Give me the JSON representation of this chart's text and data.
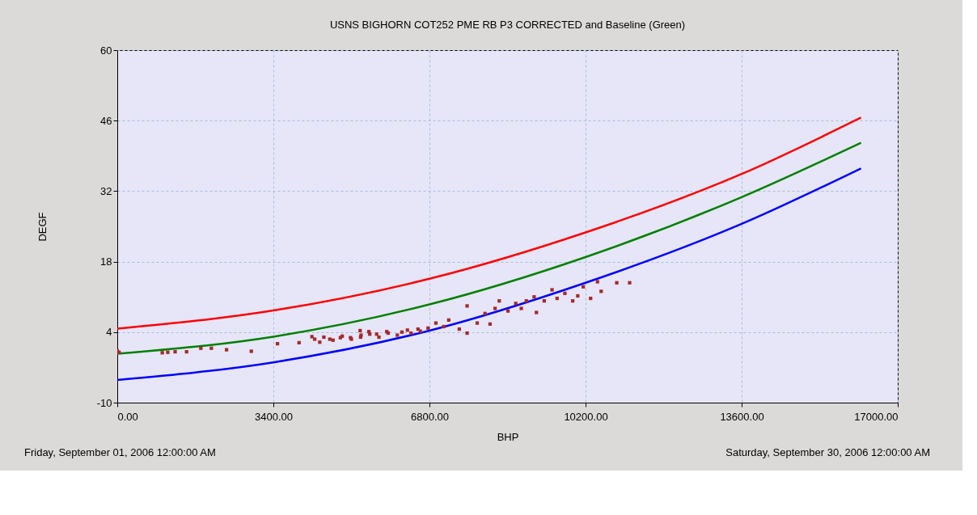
{
  "chart_data": {
    "type": "line",
    "title": "USNS BIGHORN COT252  PME  RB P3 CORRECTED and Baseline (Green)",
    "xlabel": "BHP",
    "ylabel": "DEGF",
    "annotations": [
      "Friday, September 01, 2006 12:00:00 AM",
      "Saturday, September 30, 2006 12:00:00 AM"
    ],
    "xlim": [
      0,
      17000
    ],
    "ylim": [
      -10,
      60
    ],
    "xticks": [
      {
        "value": 0,
        "label": "0.00"
      },
      {
        "value": 3400,
        "label": "3400.00"
      },
      {
        "value": 6800,
        "label": "6800.00"
      },
      {
        "value": 10200,
        "label": "10200.00"
      },
      {
        "value": 13600,
        "label": "13600.00"
      },
      {
        "value": 17000,
        "label": "17000.00"
      }
    ],
    "yticks": [
      -10,
      4,
      18,
      32,
      46,
      60
    ],
    "grid": true,
    "series": [
      {
        "color": "#ff0000",
        "marker": "none",
        "x": [
          0,
          3400,
          6800,
          10200,
          13600,
          16200
        ],
        "values": [
          4.7,
          8.3,
          14.6,
          23.8,
          35.4,
          46.6
        ]
      },
      {
        "color": "#008000",
        "marker": "none",
        "x": [
          0,
          3400,
          6800,
          10200,
          13600,
          16200
        ],
        "values": [
          -0.3,
          3.1,
          9.5,
          18.9,
          30.8,
          41.6
        ]
      },
      {
        "color": "#0000ff",
        "marker": "none",
        "x": [
          0,
          3400,
          6800,
          10200,
          13600,
          16200
        ],
        "values": [
          -5.5,
          -2.0,
          4.3,
          13.8,
          25.5,
          36.5
        ]
      },
      {
        "type": "scatter",
        "marker": "square",
        "color": "#a52a2a",
        "x": [
          0,
          40,
          980,
          1100,
          1260,
          1510,
          1820,
          2050,
          2380,
          2920,
          3490,
          3960,
          4240,
          4410,
          4630,
          4860,
          5080,
          5310,
          5480,
          5650,
          5870,
          6100,
          6320,
          6550,
          6770,
          4300,
          4500,
          4700,
          4900,
          5100,
          5300,
          5500,
          5700,
          5900,
          6200,
          6400,
          6600,
          5290,
          6940,
          7110,
          7220,
          7450,
          7620,
          7620,
          7840,
          8010,
          8120,
          8230,
          8320,
          8510,
          8680,
          8800,
          8910,
          9080,
          9130,
          9300,
          9470,
          9580,
          9750,
          9920,
          10030,
          10150,
          10310,
          10460,
          10540,
          10880,
          11160
        ],
        "values": [
          0.3,
          0.0,
          -0.1,
          0.0,
          0.1,
          0.1,
          0.8,
          0.8,
          0.5,
          0.2,
          1.7,
          1.9,
          3.1,
          2.0,
          2.6,
          2.9,
          2.9,
          3.4,
          4.1,
          3.6,
          4.1,
          3.4,
          4.4,
          4.6,
          4.8,
          2.6,
          3.0,
          2.4,
          3.2,
          2.6,
          3.0,
          3.6,
          3.0,
          3.8,
          4.0,
          3.8,
          4.2,
          4.3,
          5.8,
          5.1,
          6.4,
          4.6,
          3.8,
          9.2,
          5.8,
          7.7,
          5.6,
          8.7,
          10.2,
          8.2,
          9.7,
          8.7,
          10.2,
          11.0,
          7.9,
          10.2,
          12.4,
          10.7,
          11.7,
          10.2,
          11.2,
          13.0,
          10.7,
          14.0,
          12.1,
          13.8,
          13.8
        ]
      }
    ]
  }
}
